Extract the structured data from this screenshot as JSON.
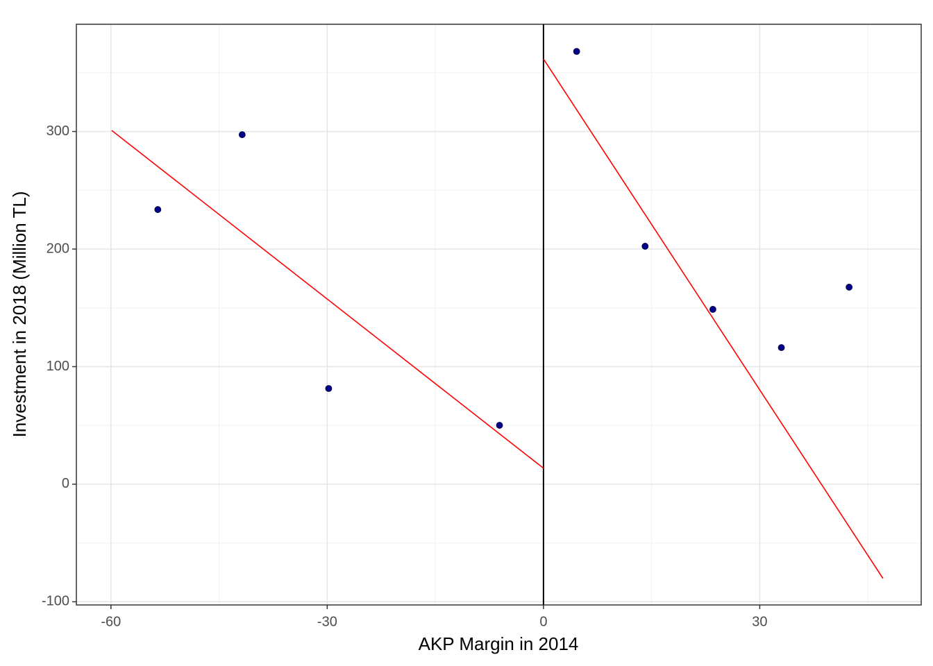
{
  "chart_data": {
    "type": "scatter",
    "x_label": "AKP Margin in 2014",
    "y_label": "Investment in 2018 (Million TL)",
    "xlim": [
      -64.8,
      52.4
    ],
    "ylim": [
      -102.7,
      391.2
    ],
    "xticks": [
      -60,
      -30,
      0,
      30
    ],
    "yticks": [
      -100,
      0,
      100,
      200,
      300
    ],
    "xminor": [
      -45,
      -15,
      15,
      45
    ],
    "yminor": [
      -50,
      50,
      150,
      250,
      350
    ],
    "grid": true,
    "series": [
      {
        "color": "#00008b",
        "x": [
          -53.5,
          -41.8,
          -29.8,
          -6.1,
          4.6,
          14.1,
          23.5,
          33.0,
          42.4
        ],
        "values": [
          233.6,
          297.3,
          81.4,
          50.1,
          368.1,
          202.4,
          148.7,
          116.2,
          167.6
        ]
      }
    ],
    "fit_lines": [
      {
        "color": "#ff0000",
        "x": [
          -59.9,
          0
        ],
        "values": [
          300.9,
          13.6
        ]
      },
      {
        "color": "#ff0000",
        "x": [
          0,
          47.1
        ],
        "values": [
          361.7,
          -80.2
        ]
      }
    ],
    "vline": {
      "x": 0,
      "color": "#000000"
    }
  }
}
